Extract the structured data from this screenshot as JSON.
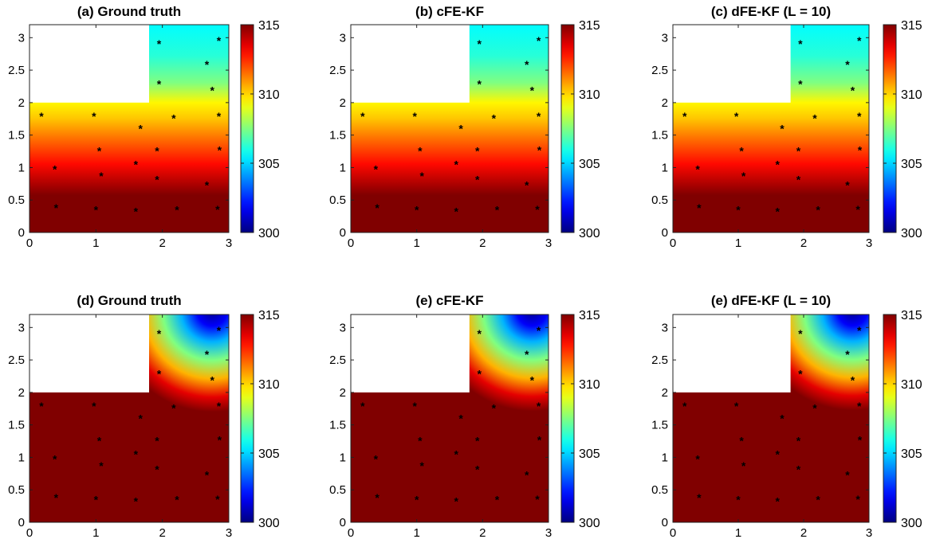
{
  "chart_data": [
    {
      "type": "heatmap",
      "title": "(a) Ground truth",
      "xlim": [
        0,
        3
      ],
      "ylim": [
        0,
        3.2
      ],
      "xticks": [
        "0",
        "1",
        "2",
        "3"
      ],
      "yticks": [
        "0",
        "0.5",
        "1",
        "1.5",
        "2",
        "2.5",
        "3"
      ],
      "colorbar": {
        "range": [
          300,
          315
        ],
        "ticks": [
          "300",
          "305",
          "310",
          "315"
        ],
        "colormap": "jet"
      },
      "masked_region": {
        "x": [
          0,
          1.8
        ],
        "y": [
          2,
          3.2
        ]
      },
      "field": "vertical",
      "sensors": [
        [
          0.18,
          1.8
        ],
        [
          0.97,
          1.8
        ],
        [
          1.67,
          1.61
        ],
        [
          2.17,
          1.77
        ],
        [
          2.85,
          1.8
        ],
        [
          1.05,
          1.27
        ],
        [
          1.92,
          1.27
        ],
        [
          2.86,
          1.28
        ],
        [
          0.38,
          0.99
        ],
        [
          1.6,
          1.06
        ],
        [
          1.08,
          0.88
        ],
        [
          1.92,
          0.83
        ],
        [
          2.67,
          0.74
        ],
        [
          0.4,
          0.39
        ],
        [
          1.0,
          0.36
        ],
        [
          1.6,
          0.34
        ],
        [
          2.22,
          0.36
        ],
        [
          2.83,
          0.37
        ],
        [
          1.95,
          2.92
        ],
        [
          2.85,
          2.97
        ],
        [
          2.67,
          2.6
        ],
        [
          1.95,
          2.3
        ],
        [
          2.75,
          2.2
        ]
      ]
    },
    {
      "type": "heatmap",
      "title": "(b) cFE-KF",
      "xlim": [
        0,
        3
      ],
      "ylim": [
        0,
        3.2
      ],
      "xticks": [
        "0",
        "1",
        "2",
        "3"
      ],
      "yticks": [
        "0",
        "0.5",
        "1",
        "1.5",
        "2",
        "2.5",
        "3"
      ],
      "colorbar": {
        "range": [
          300,
          315
        ],
        "ticks": [
          "300",
          "305",
          "310",
          "315"
        ],
        "colormap": "jet"
      },
      "masked_region": {
        "x": [
          0,
          1.8
        ],
        "y": [
          2,
          3.2
        ]
      },
      "field": "vertical",
      "sensors": [
        [
          0.18,
          1.8
        ],
        [
          0.97,
          1.8
        ],
        [
          1.67,
          1.61
        ],
        [
          2.17,
          1.77
        ],
        [
          2.85,
          1.8
        ],
        [
          1.05,
          1.27
        ],
        [
          1.92,
          1.27
        ],
        [
          2.86,
          1.28
        ],
        [
          0.38,
          0.99
        ],
        [
          1.6,
          1.06
        ],
        [
          1.08,
          0.88
        ],
        [
          1.92,
          0.83
        ],
        [
          2.67,
          0.74
        ],
        [
          0.4,
          0.39
        ],
        [
          1.0,
          0.36
        ],
        [
          1.6,
          0.34
        ],
        [
          2.22,
          0.36
        ],
        [
          2.83,
          0.37
        ],
        [
          1.95,
          2.92
        ],
        [
          2.85,
          2.97
        ],
        [
          2.67,
          2.6
        ],
        [
          1.95,
          2.3
        ],
        [
          2.75,
          2.2
        ]
      ]
    },
    {
      "type": "heatmap",
      "title": "(c) dFE-KF (L = 10)",
      "xlim": [
        0,
        3
      ],
      "ylim": [
        0,
        3.2
      ],
      "xticks": [
        "0",
        "1",
        "2",
        "3"
      ],
      "yticks": [
        "0",
        "0.5",
        "1",
        "1.5",
        "2",
        "2.5",
        "3"
      ],
      "colorbar": {
        "range": [
          300,
          315
        ],
        "ticks": [
          "300",
          "305",
          "310",
          "315"
        ],
        "colormap": "jet"
      },
      "masked_region": {
        "x": [
          0,
          1.8
        ],
        "y": [
          2,
          3.2
        ]
      },
      "field": "vertical",
      "sensors": [
        [
          0.18,
          1.8
        ],
        [
          0.97,
          1.8
        ],
        [
          1.67,
          1.61
        ],
        [
          2.17,
          1.77
        ],
        [
          2.85,
          1.8
        ],
        [
          1.05,
          1.27
        ],
        [
          1.92,
          1.27
        ],
        [
          2.86,
          1.28
        ],
        [
          0.38,
          0.99
        ],
        [
          1.6,
          1.06
        ],
        [
          1.08,
          0.88
        ],
        [
          1.92,
          0.83
        ],
        [
          2.67,
          0.74
        ],
        [
          0.4,
          0.39
        ],
        [
          1.0,
          0.36
        ],
        [
          1.6,
          0.34
        ],
        [
          2.22,
          0.36
        ],
        [
          2.83,
          0.37
        ],
        [
          1.95,
          2.92
        ],
        [
          2.85,
          2.97
        ],
        [
          2.67,
          2.6
        ],
        [
          1.95,
          2.3
        ],
        [
          2.75,
          2.2
        ]
      ]
    },
    {
      "type": "heatmap",
      "title": "(d) Ground truth",
      "xlim": [
        0,
        3
      ],
      "ylim": [
        0,
        3.2
      ],
      "xticks": [
        "0",
        "1",
        "2",
        "3"
      ],
      "yticks": [
        "0",
        "0.5",
        "1",
        "1.5",
        "2",
        "2.5",
        "3"
      ],
      "colorbar": {
        "range": [
          300,
          315
        ],
        "ticks": [
          "300",
          "305",
          "310",
          "315"
        ],
        "colormap": "jet"
      },
      "masked_region": {
        "x": [
          0,
          1.8
        ],
        "y": [
          2,
          3.2
        ]
      },
      "field": "radial",
      "sensors": [
        [
          0.18,
          1.8
        ],
        [
          0.97,
          1.8
        ],
        [
          1.67,
          1.61
        ],
        [
          2.17,
          1.77
        ],
        [
          2.85,
          1.8
        ],
        [
          1.05,
          1.27
        ],
        [
          1.92,
          1.27
        ],
        [
          2.86,
          1.28
        ],
        [
          0.38,
          0.99
        ],
        [
          1.6,
          1.06
        ],
        [
          1.08,
          0.88
        ],
        [
          1.92,
          0.83
        ],
        [
          2.67,
          0.74
        ],
        [
          0.4,
          0.39
        ],
        [
          1.0,
          0.36
        ],
        [
          1.6,
          0.34
        ],
        [
          2.22,
          0.36
        ],
        [
          2.83,
          0.37
        ],
        [
          1.95,
          2.92
        ],
        [
          2.85,
          2.97
        ],
        [
          2.67,
          2.6
        ],
        [
          1.95,
          2.3
        ],
        [
          2.75,
          2.2
        ]
      ]
    },
    {
      "type": "heatmap",
      "title": "(e) cFE-KF",
      "xlim": [
        0,
        3
      ],
      "ylim": [
        0,
        3.2
      ],
      "xticks": [
        "0",
        "1",
        "2",
        "3"
      ],
      "yticks": [
        "0",
        "0.5",
        "1",
        "1.5",
        "2",
        "2.5",
        "3"
      ],
      "colorbar": {
        "range": [
          300,
          315
        ],
        "ticks": [
          "300",
          "305",
          "310",
          "315"
        ],
        "colormap": "jet"
      },
      "masked_region": {
        "x": [
          0,
          1.8
        ],
        "y": [
          2,
          3.2
        ]
      },
      "field": "radial",
      "sensors": [
        [
          0.18,
          1.8
        ],
        [
          0.97,
          1.8
        ],
        [
          1.67,
          1.61
        ],
        [
          2.17,
          1.77
        ],
        [
          2.85,
          1.8
        ],
        [
          1.05,
          1.27
        ],
        [
          1.92,
          1.27
        ],
        [
          2.86,
          1.28
        ],
        [
          0.38,
          0.99
        ],
        [
          1.6,
          1.06
        ],
        [
          1.08,
          0.88
        ],
        [
          1.92,
          0.83
        ],
        [
          2.67,
          0.74
        ],
        [
          0.4,
          0.39
        ],
        [
          1.0,
          0.36
        ],
        [
          1.6,
          0.34
        ],
        [
          2.22,
          0.36
        ],
        [
          2.83,
          0.37
        ],
        [
          1.95,
          2.92
        ],
        [
          2.85,
          2.97
        ],
        [
          2.67,
          2.6
        ],
        [
          1.95,
          2.3
        ],
        [
          2.75,
          2.2
        ]
      ]
    },
    {
      "type": "heatmap",
      "title": "(e) dFE-KF (L = 10)",
      "xlim": [
        0,
        3
      ],
      "ylim": [
        0,
        3.2
      ],
      "xticks": [
        "0",
        "1",
        "2",
        "3"
      ],
      "yticks": [
        "0",
        "0.5",
        "1",
        "1.5",
        "2",
        "2.5",
        "3"
      ],
      "colorbar": {
        "range": [
          300,
          315
        ],
        "ticks": [
          "300",
          "305",
          "310",
          "315"
        ],
        "colormap": "jet"
      },
      "masked_region": {
        "x": [
          0,
          1.8
        ],
        "y": [
          2,
          3.2
        ]
      },
      "field": "radial",
      "sensors": [
        [
          0.18,
          1.8
        ],
        [
          0.97,
          1.8
        ],
        [
          1.67,
          1.61
        ],
        [
          2.17,
          1.77
        ],
        [
          2.85,
          1.8
        ],
        [
          1.05,
          1.27
        ],
        [
          1.92,
          1.27
        ],
        [
          2.86,
          1.28
        ],
        [
          0.38,
          0.99
        ],
        [
          1.6,
          1.06
        ],
        [
          1.08,
          0.88
        ],
        [
          1.92,
          0.83
        ],
        [
          2.67,
          0.74
        ],
        [
          0.4,
          0.39
        ],
        [
          1.0,
          0.36
        ],
        [
          1.6,
          0.34
        ],
        [
          2.22,
          0.36
        ],
        [
          2.83,
          0.37
        ],
        [
          1.95,
          2.92
        ],
        [
          2.85,
          2.97
        ],
        [
          2.67,
          2.6
        ],
        [
          1.95,
          2.3
        ],
        [
          2.75,
          2.2
        ]
      ]
    }
  ]
}
